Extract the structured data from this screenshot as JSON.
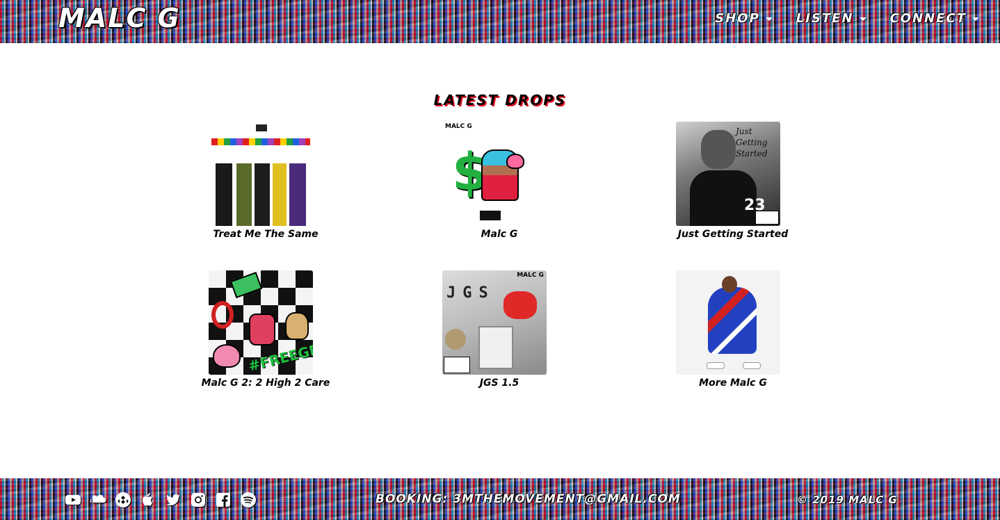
{
  "header": {
    "brand": "MALC G",
    "nav": [
      {
        "label": "SHOP"
      },
      {
        "label": "LISTEN"
      },
      {
        "label": "CONNECT"
      }
    ]
  },
  "main": {
    "title": "LATEST DROPS",
    "releases": [
      {
        "title": "Treat Me The Same"
      },
      {
        "title": "Malc G"
      },
      {
        "title": "Just Getting Started"
      },
      {
        "title": "Malc G 2: 2 High 2 Care"
      },
      {
        "title": "JGS 1.5"
      },
      {
        "title": "More Malc G"
      }
    ]
  },
  "cover_text": {
    "malc_g_tag": "MALC G",
    "jgs_letters": "JGS",
    "jgs_tag": "MALC G",
    "jgs_script": "Just Getting Started",
    "jersey_number": "23",
    "hashtag": "#FREEGEE"
  },
  "footer": {
    "social": [
      {
        "icon": "youtube-icon",
        "glyph": "▶"
      },
      {
        "icon": "soundcloud-icon",
        "glyph": "☁"
      },
      {
        "icon": "tidal-icon",
        "glyph": "◆"
      },
      {
        "icon": "apple-icon",
        "glyph": ""
      },
      {
        "icon": "twitter-icon",
        "glyph": "🐦"
      },
      {
        "icon": "instagram-icon",
        "glyph": "◎"
      },
      {
        "icon": "facebook-icon",
        "glyph": "f"
      },
      {
        "icon": "spotify-icon",
        "glyph": "≋"
      }
    ],
    "booking": "BOOKING: 3MTHEMOVEMENT@GMAIL.COM",
    "copyright": "© 2019 MALC G"
  }
}
